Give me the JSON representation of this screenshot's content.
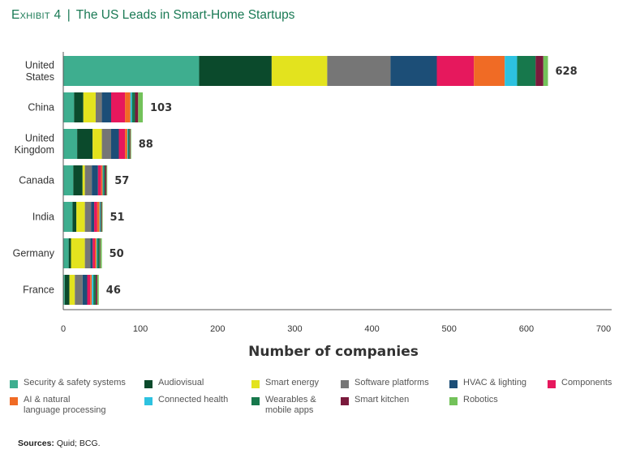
{
  "header": {
    "exhibit": "Exhibit 4",
    "separator": "|",
    "title": "The US Leads in Smart-Home Startups"
  },
  "chart_data": {
    "type": "bar",
    "orientation": "horizontal",
    "stacked": true,
    "categories": [
      "United States",
      "China",
      "United Kingdom",
      "Canada",
      "India",
      "Germany",
      "France"
    ],
    "category_lines": [
      [
        "United",
        "States"
      ],
      [
        "China"
      ],
      [
        "United",
        "Kingdom"
      ],
      [
        "Canada"
      ],
      [
        "India"
      ],
      [
        "Germany"
      ],
      [
        "France"
      ]
    ],
    "totals": [
      628,
      103,
      88,
      57,
      51,
      50,
      46
    ],
    "xlabel": "Number of companies",
    "xlim": [
      0,
      700
    ],
    "xticks": [
      0,
      100,
      200,
      300,
      400,
      500,
      600,
      700
    ],
    "grid": false,
    "legend_position": "bottom",
    "series": [
      {
        "name": "Security & safety systems",
        "color": "#3eae8f",
        "values": [
          176,
          14,
          18,
          13,
          12,
          7,
          2
        ]
      },
      {
        "name": "Audiovisual",
        "color": "#0b4a2c",
        "values": [
          94,
          12,
          20,
          12,
          5,
          3,
          6
        ]
      },
      {
        "name": "Smart energy",
        "color": "#e3e31e",
        "values": [
          72,
          16,
          12,
          3,
          11,
          18,
          7
        ]
      },
      {
        "name": "Software platforms",
        "color": "#767676",
        "values": [
          82,
          8,
          12,
          9,
          8,
          7,
          10
        ]
      },
      {
        "name": "HVAC & lighting",
        "color": "#1c4e77",
        "values": [
          60,
          12,
          10,
          8,
          4,
          3,
          6
        ]
      },
      {
        "name": "Components",
        "color": "#e6185d",
        "values": [
          48,
          18,
          8,
          4,
          4,
          3,
          4
        ]
      },
      {
        "name": "AI & natural language processing",
        "color": "#f06b25",
        "values": [
          40,
          7,
          3,
          2,
          3,
          2,
          2
        ]
      },
      {
        "name": "Connected health",
        "color": "#2dc2e0",
        "values": [
          16,
          2,
          1,
          1,
          1,
          1,
          2
        ]
      },
      {
        "name": "Wearables & mobile apps",
        "color": "#17784c",
        "values": [
          24,
          4,
          2,
          2,
          1,
          3,
          3
        ]
      },
      {
        "name": "Smart kitchen",
        "color": "#7a1a3c",
        "values": [
          10,
          4,
          1,
          2,
          1,
          1,
          2
        ]
      },
      {
        "name": "Robotics",
        "color": "#73c25a",
        "values": [
          6,
          6,
          1,
          1,
          1,
          2,
          2
        ]
      }
    ]
  },
  "legend": {
    "items": [
      {
        "label": "Security & safety systems",
        "color": "#3eae8f"
      },
      {
        "label": "Audiovisual",
        "color": "#0b4a2c"
      },
      {
        "label": "Smart energy",
        "color": "#e3e31e"
      },
      {
        "label": "Software platforms",
        "color": "#767676"
      },
      {
        "label": "HVAC & lighting",
        "color": "#1c4e77"
      },
      {
        "label": "Components",
        "color": "#e6185d"
      },
      {
        "label": "AI & natural\nlanguage processing",
        "color": "#f06b25"
      },
      {
        "label": "Connected health",
        "color": "#2dc2e0"
      },
      {
        "label": "Wearables &\nmobile apps",
        "color": "#17784c"
      },
      {
        "label": "Smart kitchen",
        "color": "#7a1a3c"
      },
      {
        "label": "Robotics",
        "color": "#73c25a"
      }
    ]
  },
  "footer": {
    "sources_label": "Sources:",
    "sources_text": " Quid; BCG."
  }
}
